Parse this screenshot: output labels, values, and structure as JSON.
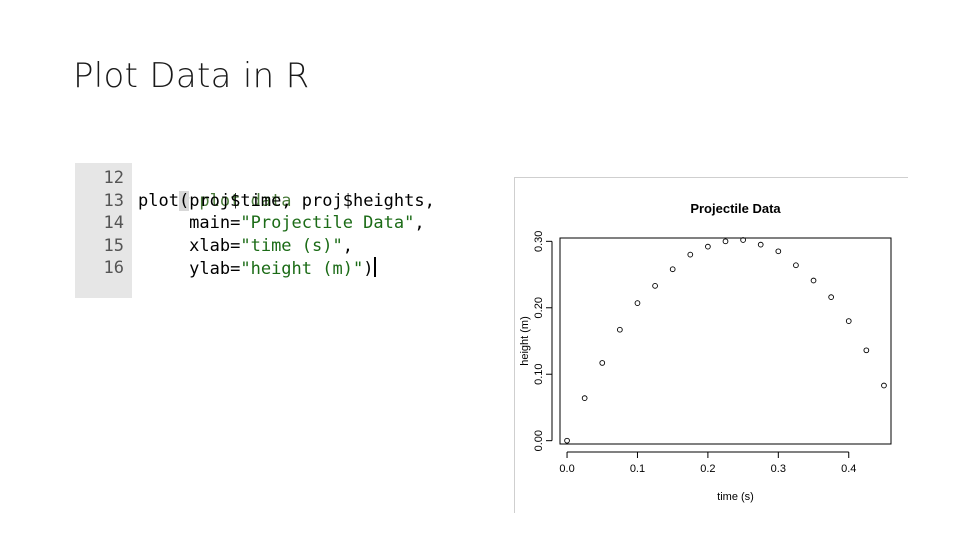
{
  "slide": {
    "title": "Plot Data in R"
  },
  "code": {
    "line_numbers": [
      "12",
      "13",
      "14",
      "15",
      "16"
    ],
    "lines": {
      "l12": "# plot data",
      "l13_fn": "plot",
      "l13_paren": "(",
      "l13_args": "proj$time, proj$heights,",
      "l14_key": "     main=",
      "l14_str": "\"Projectile Data\"",
      "l14_tail": ",",
      "l15_key": "     xlab=",
      "l15_str": "\"time (s)\"",
      "l15_tail": ",",
      "l16_key": "     ylab=",
      "l16_str": "\"height (m)\"",
      "l16_tail": ")"
    }
  },
  "chart_data": {
    "type": "scatter",
    "title": "Projectile Data",
    "xlabel": "time (s)",
    "ylabel": "height (m)",
    "xlim": [
      -0.01,
      0.46
    ],
    "ylim": [
      -0.005,
      0.305
    ],
    "x_ticks": [
      0.0,
      0.1,
      0.2,
      0.3,
      0.4
    ],
    "x_tick_labels": [
      "0.0",
      "0.1",
      "0.2",
      "0.3",
      "0.4"
    ],
    "y_ticks": [
      0.0,
      0.1,
      0.2,
      0.3
    ],
    "y_tick_labels": [
      "0.00",
      "0.10",
      "0.20",
      "0.30"
    ],
    "grid": false,
    "marker": "open-circle",
    "x": [
      0.0,
      0.025,
      0.05,
      0.075,
      0.1,
      0.125,
      0.15,
      0.175,
      0.2,
      0.225,
      0.25,
      0.275,
      0.3,
      0.325,
      0.35,
      0.375,
      0.4,
      0.425,
      0.45
    ],
    "y": [
      0.0,
      0.064,
      0.117,
      0.167,
      0.207,
      0.233,
      0.258,
      0.28,
      0.292,
      0.3,
      0.302,
      0.295,
      0.285,
      0.264,
      0.241,
      0.216,
      0.18,
      0.136,
      0.083
    ]
  }
}
